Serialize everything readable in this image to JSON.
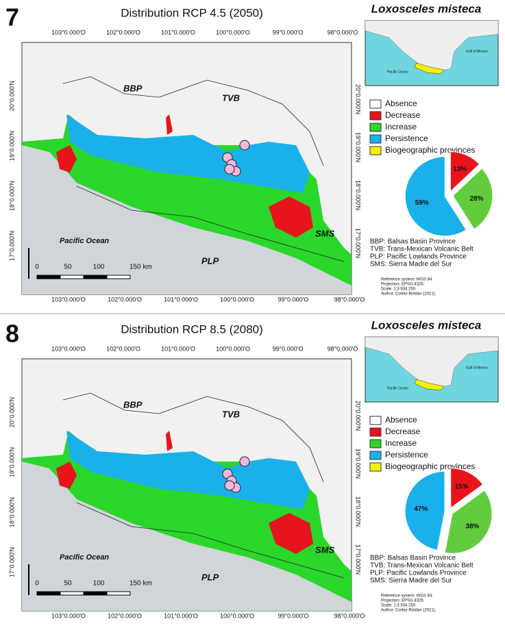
{
  "panels": [
    {
      "number": "7",
      "title": "Distribution RCP 4.5 (2050)",
      "species": "Loxosceles misteca",
      "longitude_labels_top": [
        "103°0.000'O",
        "102°0.000'O",
        "101°0.000'O",
        "100°0.000'O",
        "99°0.000'O",
        "98°0.000'O"
      ],
      "longitude_labels_bottom": [
        "103°0.000'O",
        "102°0.000'O",
        "101°0.000'O",
        "100°0.000'O",
        "99°0.000'O",
        "98°0.000'O"
      ],
      "latitude_labels_left": [
        "20°0.000'N",
        "19°0.000'N",
        "18°0.000'N",
        "17°0.000'N"
      ],
      "latitude_labels_right": [
        "20°0.000'N",
        "19°0.000'N",
        "18°0.000'N",
        "17°0.000'N"
      ],
      "map_labels": {
        "bbp": "BBP",
        "tvb": "TVB",
        "sms": "SMS",
        "plp": "PLP",
        "ocean": "Pacific Ocean"
      },
      "scale_bar": [
        "0",
        "50",
        "100",
        "150 km"
      ],
      "inset_labels": [
        "Pacific Ocean",
        "Gulf of Mexico"
      ],
      "legend": [
        {
          "label": "Absence",
          "color": "#ffffff"
        },
        {
          "label": "Decrease",
          "color": "#e8141b"
        },
        {
          "label": "Increase",
          "color": "#2bd62b"
        },
        {
          "label": "Persistence",
          "color": "#1ab0ea"
        },
        {
          "label": "Biogeographic provinces",
          "color": "#f5f000"
        }
      ],
      "pie": {
        "values": [
          13,
          28,
          59
        ],
        "value_labels": [
          "13%",
          "28%",
          "59%"
        ],
        "colors": [
          "#e8141b",
          "#62cc3f",
          "#1ab0ea"
        ]
      },
      "abbreviations": [
        "BBP: Balsas Basin Province",
        "TVB: Trans-Mexican Volcanic Belt",
        "PLP: Pacific Lowlands Province",
        "SMS: Sierra Madre del Sur"
      ],
      "metadata": [
        "Reference system: WGS 84.",
        "Projection: EPSG:4326.",
        "Scale: 1:3 934 250.",
        "Author: Cortez-Roldan (2021)."
      ]
    },
    {
      "number": "8",
      "title": "Distribution RCP 8.5 (2080)",
      "species": "Loxosceles misteca",
      "longitude_labels_top": [
        "103°0.000'O",
        "102°0.000'O",
        "101°0.000'O",
        "100°0.000'O",
        "99°0.000'O",
        "98°0.000'O"
      ],
      "longitude_labels_bottom": [
        "103°0.000'O",
        "102°0.000'O",
        "101°0.000'O",
        "100°0.000'O",
        "99°0.000'O",
        "98°0.000'O"
      ],
      "latitude_labels_left": [
        "20°0.000'N",
        "19°0.000'N",
        "18°0.000'N",
        "17°0.000'N"
      ],
      "latitude_labels_right": [
        "20°0.000'N",
        "19°0.000'N",
        "18°0.000'N",
        "17°0.000'N"
      ],
      "map_labels": {
        "bbp": "BBP",
        "tvb": "TVB",
        "sms": "SMS",
        "plp": "PLP",
        "ocean": "Pacific Ocean"
      },
      "scale_bar": [
        "0",
        "50",
        "100",
        "150 km"
      ],
      "inset_labels": [
        "Pacific Ocean",
        "Gulf of Mexico"
      ],
      "legend": [
        {
          "label": "Absence",
          "color": "#ffffff"
        },
        {
          "label": "Decrease",
          "color": "#e8141b"
        },
        {
          "label": "Increase",
          "color": "#2bd62b"
        },
        {
          "label": "Persistence",
          "color": "#1ab0ea"
        },
        {
          "label": "Biogeographic provinces",
          "color": "#f5f000"
        }
      ],
      "pie": {
        "values": [
          15,
          38,
          47
        ],
        "value_labels": [
          "15%",
          "38%",
          "47%"
        ],
        "colors": [
          "#e8141b",
          "#62cc3f",
          "#1ab0ea"
        ]
      },
      "abbreviations": [
        "BBP: Balsas Basin Province",
        "TVB: Trans-Mexican Volcanic Belt",
        "PLP: Pacific Lowlands Province",
        "SMS: Sierra Madre del Sur"
      ],
      "metadata": [
        "Reference system: WGS 84.",
        "Projection: EPSG:4326.",
        "Scale: 1:3 934 250.",
        "Author: Cortez-Roldan (2021)."
      ]
    }
  ]
}
